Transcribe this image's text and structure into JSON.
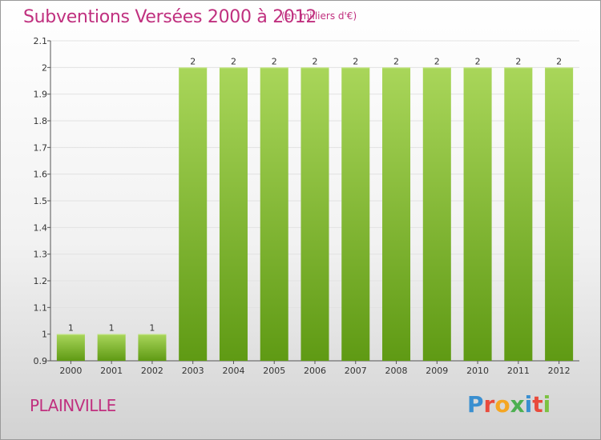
{
  "header": {
    "title": "Subventions Versées 2000 à 2012",
    "unit": "(en milliers d'€)"
  },
  "footer": {
    "commune": "PLAINVILLE",
    "logo_letters": [
      "P",
      "r",
      "o",
      "x",
      "i",
      "t",
      "i"
    ],
    "logo_colors": [
      "#3a8fd0",
      "#e94b3c",
      "#f5a623",
      "#4caf50",
      "#3a8fd0",
      "#e94b3c",
      "#7cc242"
    ]
  },
  "colors": {
    "bar_top": "#a9d65a",
    "bar_bottom": "#5f9a14",
    "accent": "#c0307f"
  },
  "chart_data": {
    "type": "bar",
    "title": "Subventions Versées 2000 à 2012",
    "subtitle": "(en milliers d'€)",
    "categories": [
      "2000",
      "2001",
      "2002",
      "2003",
      "2004",
      "2005",
      "2006",
      "2007",
      "2008",
      "2009",
      "2010",
      "2011",
      "2012"
    ],
    "values": [
      1,
      1,
      1,
      2,
      2,
      2,
      2,
      2,
      2,
      2,
      2,
      2,
      2
    ],
    "data_labels": [
      "1",
      "1",
      "1",
      "2",
      "2",
      "2",
      "2",
      "2",
      "2",
      "2",
      "2",
      "2",
      "2"
    ],
    "ylim": [
      0.9,
      2.1
    ],
    "yticks": [
      0.9,
      1,
      1.1,
      1.2,
      1.3,
      1.4,
      1.5,
      1.6,
      1.7,
      1.8,
      1.9,
      2,
      2.1
    ],
    "ytick_labels": [
      "0.9",
      "1",
      "1.1",
      "1.2",
      "1.3",
      "1.4",
      "1.5",
      "1.6",
      "1.7",
      "1.8",
      "1.9",
      "2",
      "2.1"
    ],
    "grid": true,
    "legend": "none"
  }
}
